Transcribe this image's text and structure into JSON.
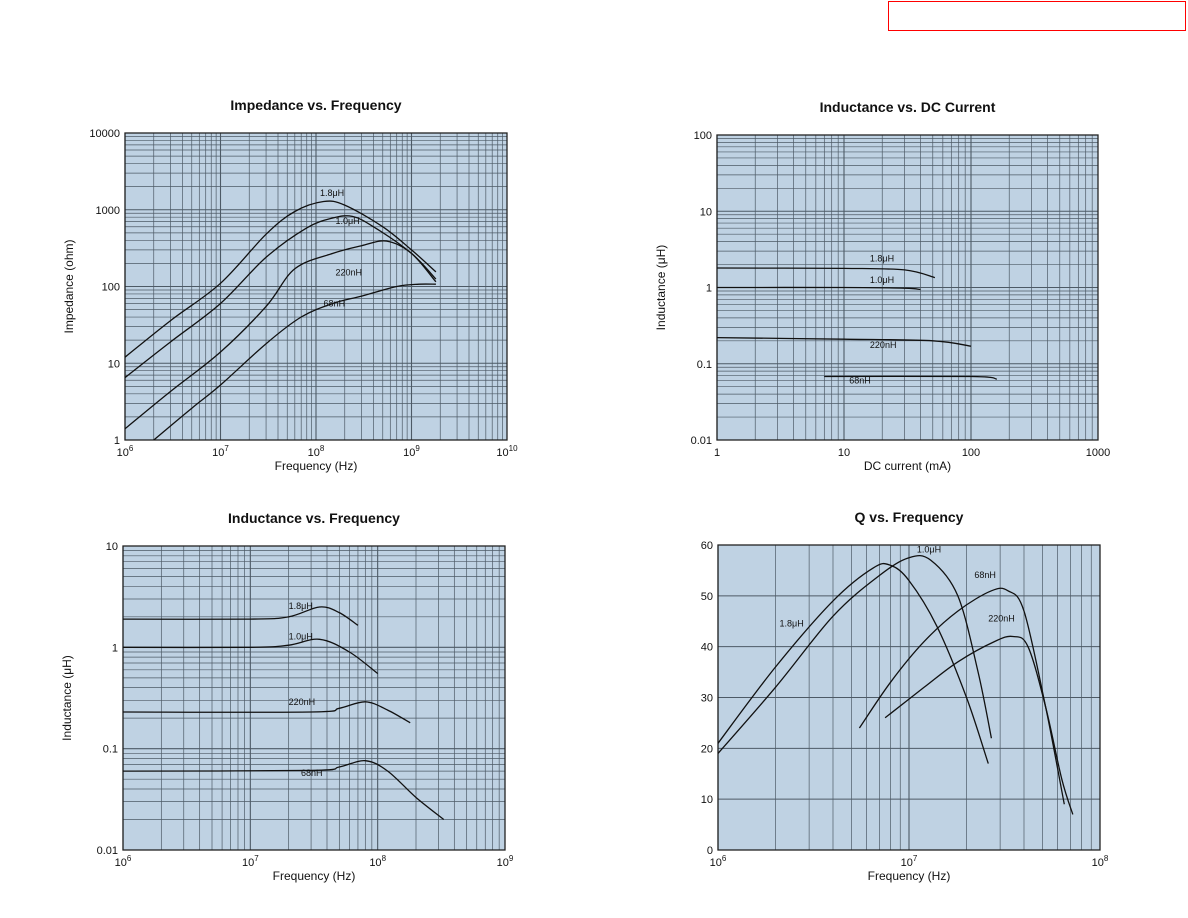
{
  "chart_data": [
    {
      "type": "line",
      "title": "Impedance vs. Frequency",
      "xlabel": "Frequency (Hz)",
      "ylabel": "Impedance (ohm)",
      "xscale": "log",
      "yscale": "log",
      "xlim": [
        1000000,
        10000000000
      ],
      "ylim": [
        1,
        10000
      ],
      "grid": true,
      "x_ticks": [
        {
          "value": 1000000,
          "base": "10",
          "exp": "6"
        },
        {
          "value": 10000000,
          "base": "10",
          "exp": "7"
        },
        {
          "value": 100000000,
          "base": "10",
          "exp": "8"
        },
        {
          "value": 1000000000,
          "base": "10",
          "exp": "9"
        },
        {
          "value": 10000000000,
          "base": "10",
          "exp": "10"
        }
      ],
      "y_ticks": [
        {
          "value": 1,
          "label": "1"
        },
        {
          "value": 10,
          "label": "10"
        },
        {
          "value": 100,
          "label": "100"
        },
        {
          "value": 1000,
          "label": "1000"
        },
        {
          "value": 10000,
          "label": "10000"
        }
      ],
      "series": [
        {
          "name": "1.8μH",
          "label_at": [
            110000000,
            1500
          ],
          "points": [
            [
              1000000,
              12
            ],
            [
              3000000,
              36
            ],
            [
              10000000,
              110
            ],
            [
              30000000,
              480
            ],
            [
              60000000,
              950
            ],
            [
              120000000,
              1280
            ],
            [
              200000000,
              1150
            ],
            [
              500000000,
              600
            ],
            [
              1000000000,
              300
            ],
            [
              1800000000,
              155
            ]
          ]
        },
        {
          "name": "1.0μH",
          "label_at": [
            160000000,
            650
          ],
          "points": [
            [
              1000000,
              6.5
            ],
            [
              3000000,
              19
            ],
            [
              10000000,
              60
            ],
            [
              30000000,
              240
            ],
            [
              80000000,
              580
            ],
            [
              150000000,
              780
            ],
            [
              240000000,
              820
            ],
            [
              400000000,
              600
            ],
            [
              1000000000,
              270
            ],
            [
              1800000000,
              125
            ]
          ]
        },
        {
          "name": "220nH",
          "label_at": [
            160000000,
            140
          ],
          "points": [
            [
              1000000,
              1.4
            ],
            [
              3000000,
              4.3
            ],
            [
              10000000,
              14
            ],
            [
              30000000,
              55
            ],
            [
              60000000,
              170
            ],
            [
              150000000,
              270
            ],
            [
              300000000,
              340
            ],
            [
              550000000,
              390
            ],
            [
              1000000000,
              270
            ],
            [
              1800000000,
              115
            ]
          ]
        },
        {
          "name": "68nH",
          "label_at": [
            120000000,
            55
          ],
          "points": [
            [
              2000000,
              1
            ],
            [
              5000000,
              2.6
            ],
            [
              10000000,
              5.2
            ],
            [
              30000000,
              18
            ],
            [
              70000000,
              40
            ],
            [
              150000000,
              60
            ],
            [
              300000000,
              75
            ],
            [
              700000000,
              100
            ],
            [
              1200000000,
              107
            ],
            [
              1800000000,
              107
            ]
          ]
        }
      ]
    },
    {
      "type": "line",
      "title": "Inductance vs. DC Current",
      "xlabel": "DC current (mA)",
      "ylabel": "Inductance (μH)",
      "xscale": "log",
      "yscale": "log",
      "xlim": [
        1,
        1000
      ],
      "ylim": [
        0.01,
        100
      ],
      "grid": true,
      "x_ticks": [
        {
          "value": 1,
          "label": "1"
        },
        {
          "value": 10,
          "label": "10"
        },
        {
          "value": 100,
          "label": "100"
        },
        {
          "value": 1000,
          "label": "1000"
        }
      ],
      "y_ticks": [
        {
          "value": 0.01,
          "label": "0.01"
        },
        {
          "value": 0.1,
          "label": "0.1"
        },
        {
          "value": 1,
          "label": "1"
        },
        {
          "value": 10,
          "label": "10"
        },
        {
          "value": 100,
          "label": "100"
        }
      ],
      "series": [
        {
          "name": "1.8μH",
          "label_at": [
            16,
            2.2
          ],
          "points": [
            [
              1,
              1.8
            ],
            [
              10,
              1.78
            ],
            [
              30,
              1.7
            ],
            [
              52,
              1.35
            ]
          ]
        },
        {
          "name": "1.0μH",
          "label_at": [
            16,
            1.15
          ],
          "points": [
            [
              1,
              1.0
            ],
            [
              10,
              1.0
            ],
            [
              30,
              0.98
            ],
            [
              40,
              0.94
            ]
          ]
        },
        {
          "name": "220nH",
          "label_at": [
            16,
            0.16
          ],
          "points": [
            [
              1,
              0.22
            ],
            [
              10,
              0.21
            ],
            [
              50,
              0.2
            ],
            [
              100,
              0.17
            ]
          ]
        },
        {
          "name": "68nH",
          "label_at": [
            11,
            0.055
          ],
          "points": [
            [
              7,
              0.068
            ],
            [
              100,
              0.068
            ],
            [
              160,
              0.063
            ]
          ]
        }
      ]
    },
    {
      "type": "line",
      "title": "Inductance vs. Frequency",
      "xlabel": "Frequency (Hz)",
      "ylabel": "Inductance (μH)",
      "xscale": "log",
      "yscale": "log",
      "xlim": [
        1000000,
        1000000000
      ],
      "ylim": [
        0.01,
        10
      ],
      "grid": true,
      "x_ticks": [
        {
          "value": 1000000,
          "base": "10",
          "exp": "6"
        },
        {
          "value": 10000000,
          "base": "10",
          "exp": "7"
        },
        {
          "value": 100000000,
          "base": "10",
          "exp": "8"
        },
        {
          "value": 1000000000,
          "base": "10",
          "exp": "9"
        }
      ],
      "y_ticks": [
        {
          "value": 0.01,
          "label": "0.01"
        },
        {
          "value": 0.1,
          "label": "0.1"
        },
        {
          "value": 1,
          "label": "1"
        },
        {
          "value": 10,
          "label": "10"
        }
      ],
      "series": [
        {
          "name": "1.8μH",
          "label_at": [
            20000000,
            2.4
          ],
          "points": [
            [
              1000000,
              1.9
            ],
            [
              10000000,
              1.9
            ],
            [
              20000000,
              2.0
            ],
            [
              35000000,
              2.5
            ],
            [
              50000000,
              2.2
            ],
            [
              70000000,
              1.65
            ]
          ]
        },
        {
          "name": "1.0μH",
          "label_at": [
            20000000,
            1.2
          ],
          "points": [
            [
              1000000,
              1.0
            ],
            [
              10000000,
              1.0
            ],
            [
              20000000,
              1.05
            ],
            [
              35000000,
              1.2
            ],
            [
              60000000,
              0.9
            ],
            [
              100000000,
              0.55
            ]
          ]
        },
        {
          "name": "220nH",
          "label_at": [
            20000000,
            0.27
          ],
          "points": [
            [
              1000000,
              0.23
            ],
            [
              30000000,
              0.23
            ],
            [
              50000000,
              0.25
            ],
            [
              80000000,
              0.29
            ],
            [
              120000000,
              0.24
            ],
            [
              180000000,
              0.18
            ]
          ]
        },
        {
          "name": "68nH",
          "label_at": [
            25000000,
            0.054
          ],
          "points": [
            [
              1000000,
              0.06
            ],
            [
              30000000,
              0.061
            ],
            [
              50000000,
              0.066
            ],
            [
              80000000,
              0.076
            ],
            [
              120000000,
              0.06
            ],
            [
              200000000,
              0.033
            ],
            [
              330000000,
              0.02
            ]
          ]
        }
      ]
    },
    {
      "type": "line",
      "title": "Q vs. Frequency",
      "xlabel": "Frequency (Hz)",
      "ylabel": "",
      "xscale": "log",
      "yscale": "linear",
      "xlim": [
        1000000,
        100000000
      ],
      "ylim": [
        0,
        60
      ],
      "grid": true,
      "x_ticks": [
        {
          "value": 1000000,
          "base": "10",
          "exp": "6"
        },
        {
          "value": 10000000,
          "base": "10",
          "exp": "7"
        },
        {
          "value": 100000000,
          "base": "10",
          "exp": "8"
        }
      ],
      "y_ticks": [
        {
          "value": 0,
          "label": "0"
        },
        {
          "value": 10,
          "label": "10"
        },
        {
          "value": 20,
          "label": "20"
        },
        {
          "value": 30,
          "label": "30"
        },
        {
          "value": 40,
          "label": "40"
        },
        {
          "value": 50,
          "label": "50"
        },
        {
          "value": 60,
          "label": "60"
        }
      ],
      "series": [
        {
          "name": "1.8μH",
          "label_at": [
            2100000,
            44
          ],
          "points": [
            [
              1000000,
              21
            ],
            [
              2000000,
              36
            ],
            [
              4000000,
              49
            ],
            [
              6500000,
              55.5
            ],
            [
              8000000,
              56
            ],
            [
              10000000,
              53
            ],
            [
              14000000,
              44
            ],
            [
              20000000,
              30
            ],
            [
              26000000,
              17
            ]
          ]
        },
        {
          "name": "1.0μH",
          "label_at": [
            11000000,
            58.5
          ],
          "points": [
            [
              1000000,
              19
            ],
            [
              2000000,
              32
            ],
            [
              4000000,
              46
            ],
            [
              7000000,
              54
            ],
            [
              10000000,
              57.5
            ],
            [
              13000000,
              57
            ],
            [
              18000000,
              50
            ],
            [
              23000000,
              35
            ],
            [
              27000000,
              22
            ]
          ]
        },
        {
          "name": "68nH",
          "label_at": [
            22000000,
            53.5
          ],
          "points": [
            [
              5500000,
              24
            ],
            [
              8000000,
              33
            ],
            [
              12000000,
              41
            ],
            [
              18000000,
              47
            ],
            [
              27000000,
              51
            ],
            [
              33000000,
              51
            ],
            [
              40000000,
              47
            ],
            [
              52000000,
              28
            ],
            [
              65000000,
              9
            ]
          ]
        },
        {
          "name": "220nH",
          "label_at": [
            26000000,
            45
          ],
          "points": [
            [
              7500000,
              26
            ],
            [
              12000000,
              32
            ],
            [
              18000000,
              37
            ],
            [
              28000000,
              41
            ],
            [
              35000000,
              42
            ],
            [
              42000000,
              40
            ],
            [
              52000000,
              28
            ],
            [
              63000000,
              14
            ],
            [
              72000000,
              7
            ]
          ]
        }
      ]
    }
  ]
}
